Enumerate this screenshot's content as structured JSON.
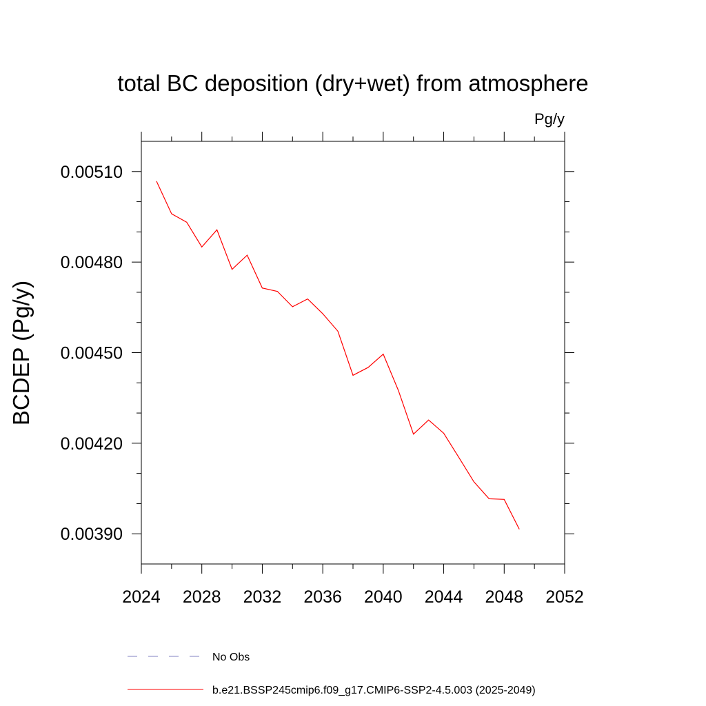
{
  "chart_data": {
    "type": "line",
    "title": "total BC deposition (dry+wet) from atmosphere",
    "units_label": "Pg/y",
    "ylabel": "BCDEP  (Pg/y)",
    "xlabel": "",
    "xlim": [
      2024,
      2052
    ],
    "ylim": [
      0.0038,
      0.0052
    ],
    "x_ticks": [
      2024,
      2028,
      2032,
      2036,
      2040,
      2044,
      2048,
      2052
    ],
    "x_tick_labels": [
      "2024",
      "2028",
      "2032",
      "2036",
      "2040",
      "2044",
      "2048",
      "2052"
    ],
    "y_ticks": [
      0.0039,
      0.0042,
      0.0045,
      0.0048,
      0.0051
    ],
    "y_tick_labels": [
      "0.00390",
      "0.00420",
      "0.00450",
      "0.00480",
      "0.00510"
    ],
    "grid": false,
    "legend_position": "bottom",
    "series": [
      {
        "name": "b.e21.BSSP245cmip6.f09_g17.CMIP6-SSP2-4.5.003 (2025-2049)",
        "color": "#ff0000",
        "dash": "solid",
        "x": [
          2025,
          2026,
          2027,
          2028,
          2029,
          2030,
          2031,
          2032,
          2033,
          2034,
          2035,
          2036,
          2037,
          2038,
          2039,
          2040,
          2041,
          2042,
          2043,
          2044,
          2045,
          2046,
          2047,
          2048,
          2049
        ],
        "values": [
          0.005068,
          0.00496,
          0.004932,
          0.00485,
          0.004907,
          0.004776,
          0.004823,
          0.004714,
          0.004703,
          0.004652,
          0.004678,
          0.004629,
          0.004571,
          0.004425,
          0.004451,
          0.004495,
          0.004375,
          0.00423,
          0.004277,
          0.004233,
          0.004153,
          0.004072,
          0.004016,
          0.004014,
          0.003915
        ]
      },
      {
        "name": "No Obs",
        "color": "#8080c0",
        "dash": "dashed",
        "x": [],
        "values": []
      }
    ]
  }
}
